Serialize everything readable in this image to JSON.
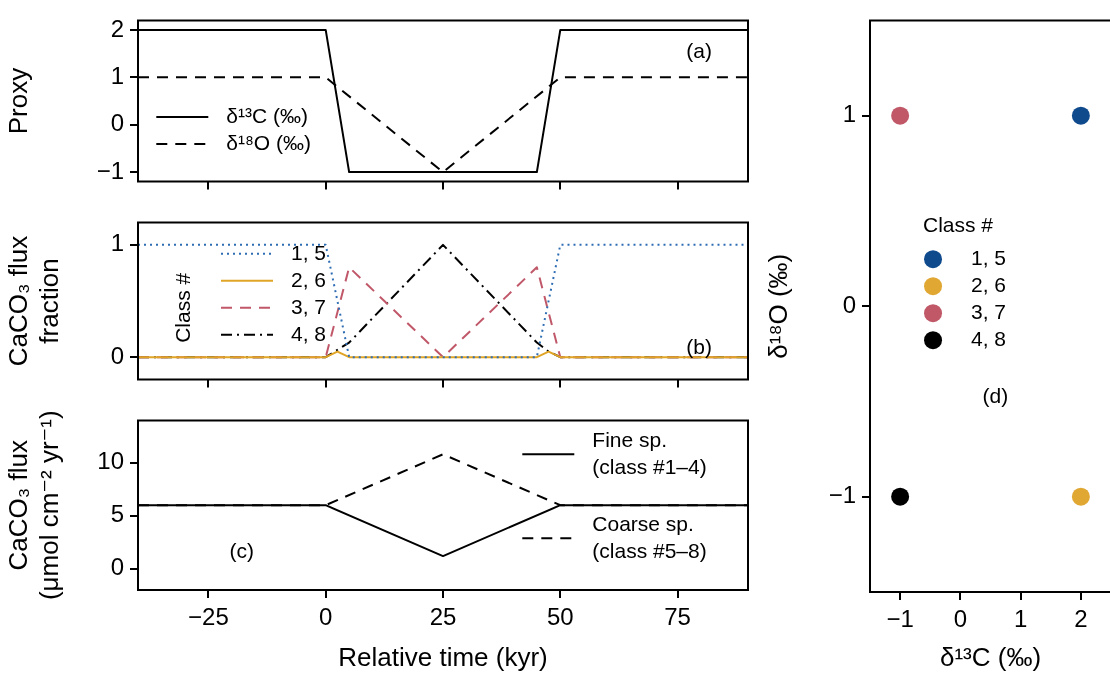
{
  "chart_data": [
    {
      "type": "line",
      "ylabel": "Proxy",
      "xlim": [
        -40,
        90
      ],
      "xticks": [
        -25,
        0,
        25,
        50,
        75
      ],
      "ylim": [
        -1.2,
        2.2
      ],
      "yticks": [
        -1,
        0,
        1,
        2
      ],
      "tick_labels": "y",
      "legend": "bottom left",
      "annotations": [
        "(a)"
      ],
      "series": [
        {
          "name": "δ¹³C (‰)",
          "color": "#000000",
          "line_style": "solid",
          "x": [
            -40,
            0,
            5,
            45,
            50,
            90
          ],
          "values": [
            2,
            2,
            -1,
            -1,
            2,
            2
          ]
        },
        {
          "name": "δ¹⁸O (‰)",
          "color": "#000000",
          "line_style": "dashed",
          "x": [
            -40,
            0,
            25,
            50,
            90
          ],
          "values": [
            1,
            1,
            -1,
            1,
            1
          ]
        }
      ]
    },
    {
      "type": "line",
      "ylabel": "CaCO₃ flux\nfraction",
      "xlim": [
        -40,
        90
      ],
      "xticks": [
        -25,
        0,
        25,
        50,
        75
      ],
      "ylim": [
        -0.2,
        1.2
      ],
      "yticks": [
        0,
        1
      ],
      "tick_labels": "y",
      "legend": "left",
      "legend_title": "Class #",
      "annotations": [
        "(b)"
      ],
      "series": [
        {
          "name": "1, 5",
          "color": "#2e6db4",
          "line_style": "dotted",
          "x": [
            -40,
            0,
            5,
            45,
            50,
            90
          ],
          "values": [
            1,
            1,
            0,
            0,
            1,
            1
          ]
        },
        {
          "name": "2, 6",
          "color": "#e0a526",
          "line_style": "solid",
          "x": [
            -40,
            0,
            2.5,
            5,
            45,
            47.5,
            50,
            90
          ],
          "values": [
            0,
            0,
            0.05,
            0,
            0,
            0.05,
            0,
            0
          ]
        },
        {
          "name": "3, 7",
          "color": "#c0586a",
          "line_style": "dashed",
          "x": [
            -40,
            0,
            5,
            25,
            45,
            50,
            90
          ],
          "values": [
            0,
            0,
            0.8,
            0,
            0.8,
            0,
            0
          ]
        },
        {
          "name": "4, 8",
          "color": "#000000",
          "line_style": "dashdot",
          "x": [
            -40,
            0,
            5,
            25,
            45,
            47.5,
            50,
            90
          ],
          "values": [
            0,
            0,
            0.13,
            1,
            0.13,
            0.05,
            0,
            0
          ]
        }
      ]
    },
    {
      "type": "line",
      "ylabel": "CaCO₃ flux\n(μmol cm⁻² yr⁻¹)",
      "xlabel": "Relative time (kyr)",
      "xlim": [
        -40,
        90
      ],
      "xticks": [
        -25,
        0,
        25,
        50,
        75
      ],
      "ylim": [
        -2,
        14
      ],
      "yticks": [
        0,
        5,
        10
      ],
      "legend": "right",
      "annotations": [
        "(c)"
      ],
      "series": [
        {
          "name": "Fine sp.\n(class #1–4)",
          "color": "#000000",
          "line_style": "solid",
          "x": [
            -40,
            0,
            25,
            50,
            90
          ],
          "values": [
            6,
            6,
            1.2,
            6,
            6
          ]
        },
        {
          "name": "Coarse sp.\n(class #5–8)",
          "color": "#000000",
          "line_style": "dashed",
          "x": [
            -40,
            0,
            25,
            50,
            90
          ],
          "values": [
            6,
            6,
            10.8,
            6,
            6
          ]
        }
      ]
    },
    {
      "type": "scatter",
      "xlabel": "δ¹³C (‰)",
      "ylabel": "δ¹⁸O (‰)",
      "xlim": [
        -1.5,
        2.5
      ],
      "xticks": [
        -1,
        0,
        1,
        2
      ],
      "ylim": [
        -1.5,
        1.5
      ],
      "yticks": [
        -1,
        0,
        1
      ],
      "legend": "center",
      "legend_title": "Class #",
      "marker": "circle",
      "annotations": [
        "(d)"
      ],
      "series": [
        {
          "name": "1, 5",
          "color": "#0f4a8c",
          "x": [
            2
          ],
          "values": [
            1
          ]
        },
        {
          "name": "2, 6",
          "color": "#e0a733",
          "x": [
            2
          ],
          "values": [
            -1
          ]
        },
        {
          "name": "3, 7",
          "color": "#c05868",
          "x": [
            -1
          ],
          "values": [
            1
          ]
        },
        {
          "name": "4, 8",
          "color": "#000000",
          "x": [
            -1
          ],
          "values": [
            -1
          ]
        }
      ]
    }
  ]
}
